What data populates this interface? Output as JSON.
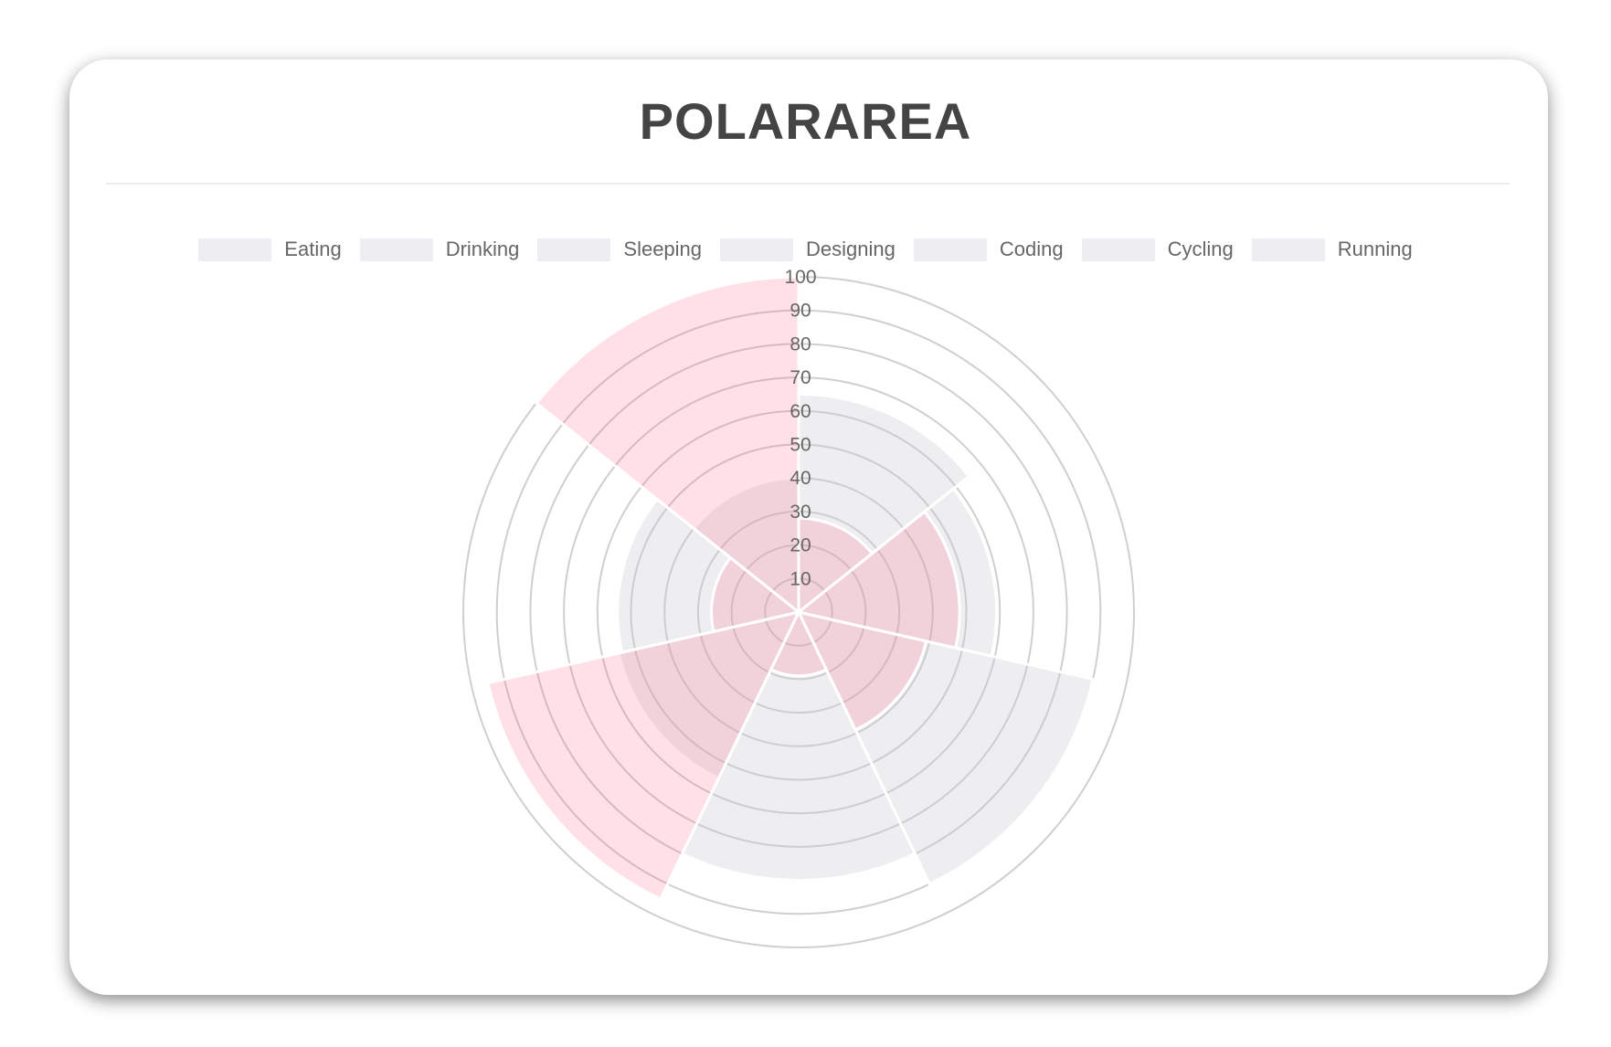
{
  "title": "POLARAREA",
  "chart_data": {
    "type": "polarArea",
    "title": "POLARAREA",
    "categories": [
      "Eating",
      "Drinking",
      "Sleeping",
      "Designing",
      "Coding",
      "Cycling",
      "Running"
    ],
    "series": [
      {
        "values": [
          65,
          59,
          90,
          80,
          55,
          54,
          40
        ],
        "color": "rgba(201,203,207,0.32)"
      },
      {
        "values": [
          28,
          48,
          39,
          19,
          95,
          26,
          100
        ],
        "color": "rgba(255,99,132,0.2)"
      }
    ],
    "rlim": [
      0,
      100
    ],
    "ticks": [
      "10",
      "20",
      "30",
      "40",
      "50",
      "60",
      "70",
      "80",
      "90",
      "100"
    ],
    "legend_position": "top",
    "legend_color": "#eeeef2",
    "grid": true
  }
}
